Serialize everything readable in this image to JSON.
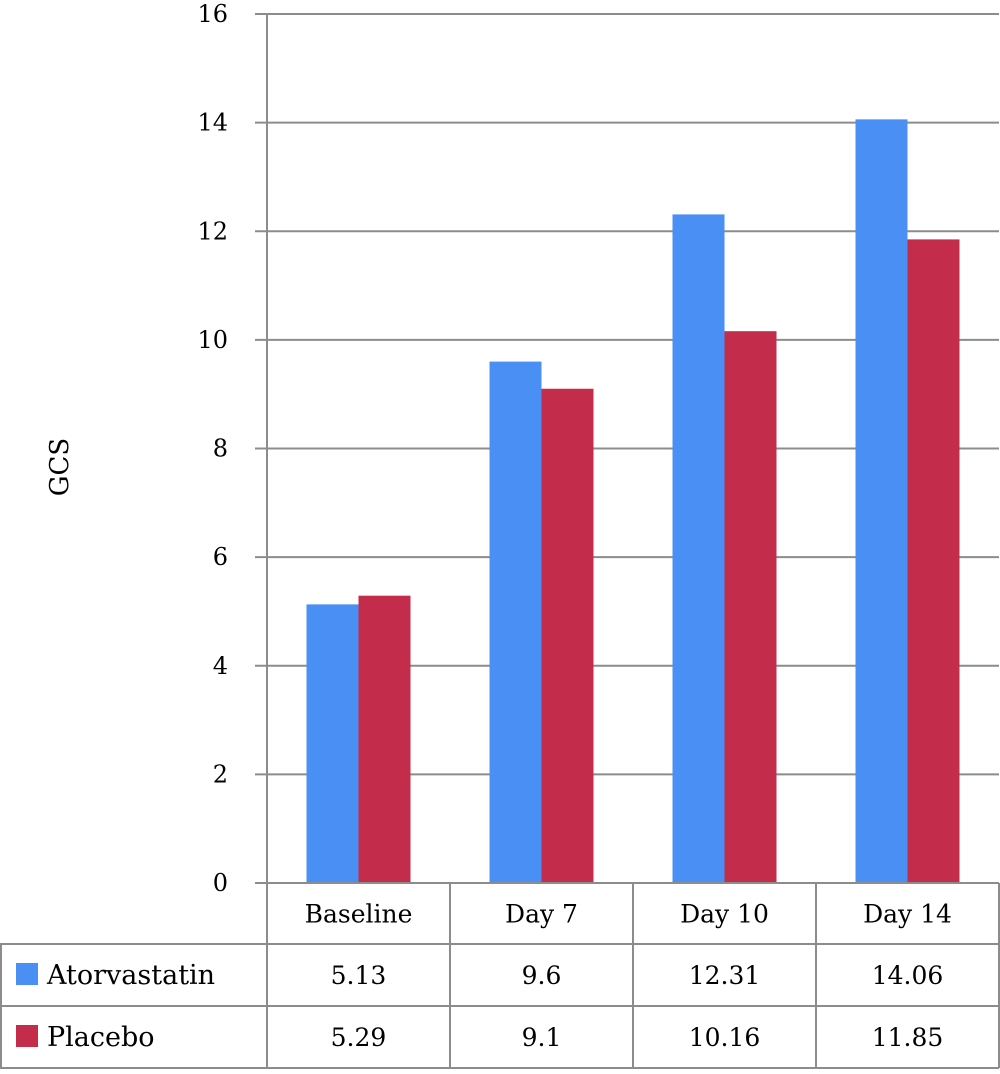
{
  "chart_data": {
    "type": "bar",
    "title": "",
    "xlabel": "",
    "ylabel": "GCS",
    "ylim": [
      0,
      16
    ],
    "yticks": [
      0,
      2,
      4,
      6,
      8,
      10,
      12,
      14,
      16
    ],
    "grid": true,
    "legend": "data-table-left",
    "categories": [
      "Baseline",
      "Day 7",
      "Day 10",
      "Day 14"
    ],
    "series": [
      {
        "name": "Atorvastatin",
        "color": "#4a90f4",
        "values": [
          5.13,
          9.6,
          12.31,
          14.06
        ],
        "labels": [
          "5.13",
          "9.6",
          "12.31",
          "14.06"
        ]
      },
      {
        "name": "Placebo",
        "color": "#c32d4b",
        "values": [
          5.29,
          9.1,
          10.16,
          11.85
        ],
        "labels": [
          "5.29",
          "9.1",
          "10.16",
          "11.85"
        ]
      }
    ]
  }
}
